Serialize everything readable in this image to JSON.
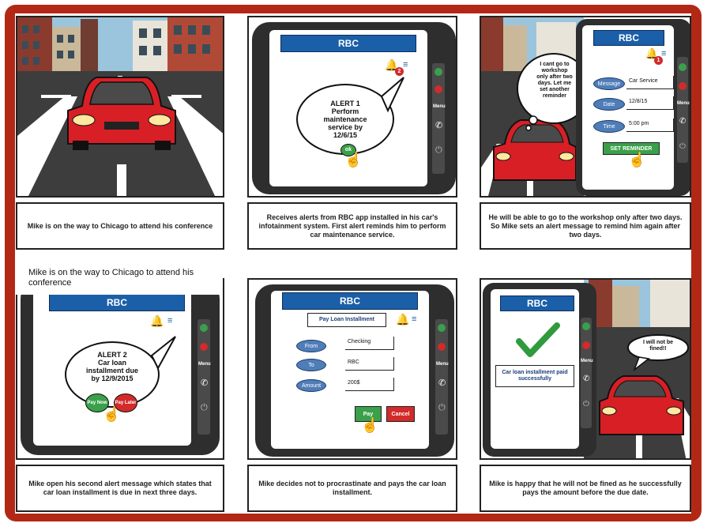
{
  "colors": {
    "frame": "#b32815",
    "rbc_blue": "#1b5fa8",
    "green": "#3aa04a",
    "red": "#d32a2a",
    "car_red": "#d81f26"
  },
  "panel1": {
    "caption": "Mike is on the way to Chicago to attend his conference"
  },
  "panel2": {
    "app_title": "RBC",
    "alert_title": "ALERT 1",
    "alert_body": [
      "Perform",
      "maintenance",
      "service by",
      "12/6/15"
    ],
    "ok_label": "ok",
    "badge": "2",
    "caption": "Receives alerts from RBC app installed in his car's infotainment system. First alert reminds him to perform car maintenance service."
  },
  "panel3": {
    "app_title": "RBC",
    "thought": [
      "I cant go to",
      "workshop",
      "only after two",
      "days. Let me",
      "set another",
      "reminder"
    ],
    "badge": "1",
    "fields": [
      {
        "label": "Message",
        "value": "Car Service"
      },
      {
        "label": "Date",
        "value": "12/8/15"
      },
      {
        "label": "Time",
        "value": "5:00 pm"
      }
    ],
    "button": "SET REMINDER",
    "caption": "He will be able to go to the workshop only after two days. So Mike sets an alert message to remind him again after two days."
  },
  "panel4": {
    "overlay": "Mike is on the way to Chicago to attend his conference",
    "app_title": "RBC",
    "alert_title": "ALERT 2",
    "alert_body": [
      "Car loan",
      "installment due",
      "by 12/9/2015"
    ],
    "pay_now": "Pay Now",
    "pay_later": "Pay Later",
    "caption": "Mike open his second alert message which states that car loan installment is due in next three days."
  },
  "panel5": {
    "app_title": "RBC",
    "form_title": "Pay Loan Installment",
    "fields": [
      {
        "label": "From",
        "value": "Checking"
      },
      {
        "label": "To",
        "value": "RBC"
      },
      {
        "label": "Amount",
        "value": "200$"
      }
    ],
    "pay": "Pay",
    "cancel": "Cancel",
    "caption": "Mike decides not to procrastinate and pays the car loan installment."
  },
  "panel6": {
    "app_title": "RBC",
    "confirmation": "Car loan installment paid successfully",
    "speech": [
      "I will not be",
      "fined!!"
    ],
    "caption": "Mike is happy that he will not be fined as he successfully pays the amount before the due date."
  },
  "side_menu_label": "Menu"
}
